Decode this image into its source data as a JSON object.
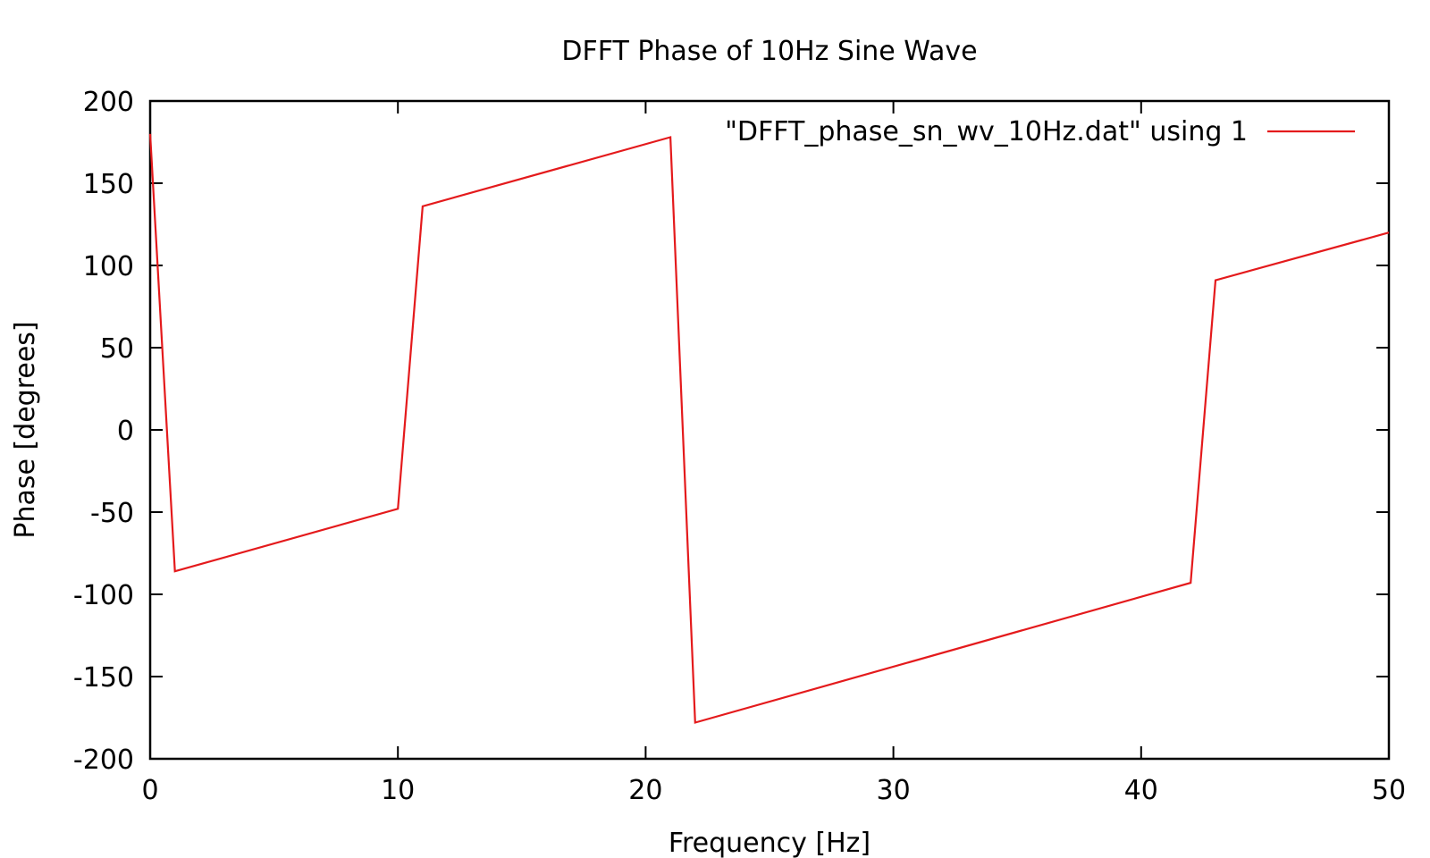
{
  "chart_data": {
    "type": "line",
    "title": "DFFT Phase of 10Hz Sine Wave",
    "xlabel": "Frequency [Hz]",
    "ylabel": "Phase [degrees]",
    "xlim": [
      0,
      50
    ],
    "ylim": [
      -200,
      200
    ],
    "x_ticks": [
      0,
      10,
      20,
      30,
      40,
      50
    ],
    "y_ticks": [
      -200,
      -150,
      -100,
      -50,
      0,
      50,
      100,
      150,
      200
    ],
    "grid": false,
    "legend_position": "top-right",
    "series": [
      {
        "name": "\"DFFT_phase_sn_wv_10Hz.dat\" using 1",
        "color": "#e41a1c",
        "x": [
          0,
          1,
          10,
          11,
          21,
          22,
          42,
          43,
          50
        ],
        "y": [
          180,
          -86,
          -48,
          136,
          178,
          -178,
          -93,
          91,
          120
        ]
      }
    ]
  }
}
